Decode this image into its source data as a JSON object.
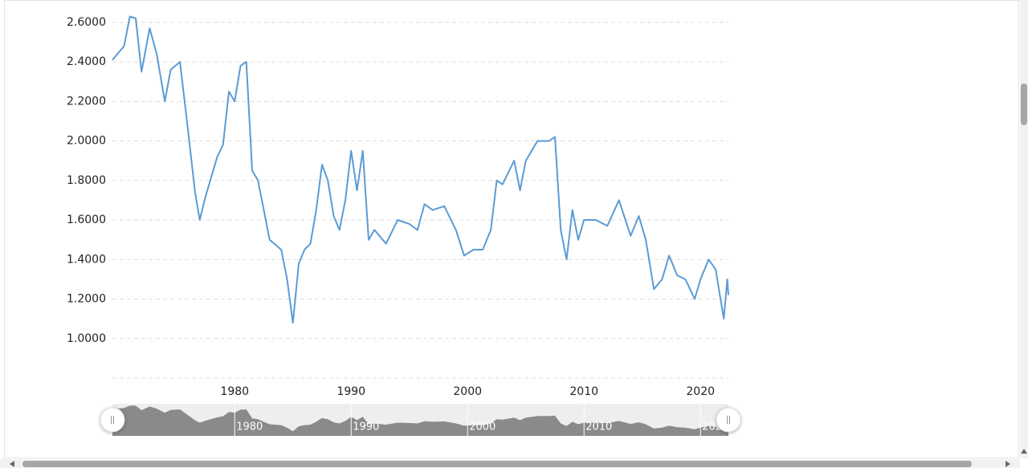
{
  "chart_data": {
    "type": "line",
    "x": [
      1969.5,
      1970.5,
      1971,
      1971.5,
      1972,
      1972.7,
      1973.3,
      1974,
      1974.5,
      1975.3,
      1976,
      1976.6,
      1977,
      1977.5,
      1978.5,
      1979,
      1979.5,
      1980,
      1980.5,
      1981,
      1981.5,
      1982,
      1982.5,
      1983,
      1984,
      1984.5,
      1985,
      1985.5,
      1986,
      1986.5,
      1987,
      1987.5,
      1988,
      1988.5,
      1989,
      1989.5,
      1990,
      1990.5,
      1991,
      1991.5,
      1992,
      1993,
      1994,
      1995,
      1995.7,
      1996.3,
      1997,
      1998,
      1999,
      1999.7,
      2000.5,
      2001.3,
      2002,
      2002.5,
      2003,
      2004,
      2004.5,
      2005,
      2006,
      2007,
      2007.5,
      2008,
      2008.5,
      2009,
      2009.5,
      2010,
      2011,
      2012,
      2013,
      2014,
      2014.7,
      2015.3,
      2016,
      2016.7,
      2017.3,
      2018,
      2018.7,
      2019.5,
      2020,
      2020.7,
      2021.3,
      2022,
      2022.3,
      2022.4
    ],
    "series": [
      {
        "color": "#5b9bd5",
        "values": [
          2.41,
          2.48,
          2.63,
          2.62,
          2.35,
          2.57,
          2.44,
          2.2,
          2.36,
          2.4,
          2.05,
          1.74,
          1.6,
          1.72,
          1.92,
          1.98,
          2.25,
          2.2,
          2.38,
          2.4,
          1.85,
          1.8,
          1.65,
          1.5,
          1.45,
          1.3,
          1.08,
          1.38,
          1.45,
          1.48,
          1.65,
          1.88,
          1.8,
          1.62,
          1.55,
          1.7,
          1.95,
          1.75,
          1.95,
          1.5,
          1.55,
          1.48,
          1.6,
          1.58,
          1.55,
          1.68,
          1.65,
          1.67,
          1.55,
          1.42,
          1.45,
          1.45,
          1.55,
          1.8,
          1.78,
          1.9,
          1.75,
          1.9,
          2.0,
          2.0,
          2.02,
          1.55,
          1.4,
          1.65,
          1.5,
          1.6,
          1.6,
          1.57,
          1.7,
          1.52,
          1.62,
          1.5,
          1.25,
          1.3,
          1.42,
          1.32,
          1.3,
          1.2,
          1.3,
          1.4,
          1.35,
          1.1,
          1.3,
          1.22
        ]
      }
    ],
    "xlim": [
      1969.5,
      2022.4
    ],
    "xticks": [
      1980,
      1990,
      2000,
      2010,
      2020
    ],
    "ylim": [
      0.8,
      2.64
    ],
    "yticks": [
      {
        "value": 1.0,
        "label": "1.0000"
      },
      {
        "value": 1.2,
        "label": "1.2000"
      },
      {
        "value": 1.4,
        "label": "1.4000"
      },
      {
        "value": 1.6,
        "label": "1.6000"
      },
      {
        "value": 1.8,
        "label": "1.8000"
      },
      {
        "value": 2.0,
        "label": "2.0000"
      },
      {
        "value": 2.2,
        "label": "2.2000"
      },
      {
        "value": 2.4,
        "label": "2.4000"
      },
      {
        "value": 2.6,
        "label": "2.6000"
      }
    ],
    "grid": true
  }
}
